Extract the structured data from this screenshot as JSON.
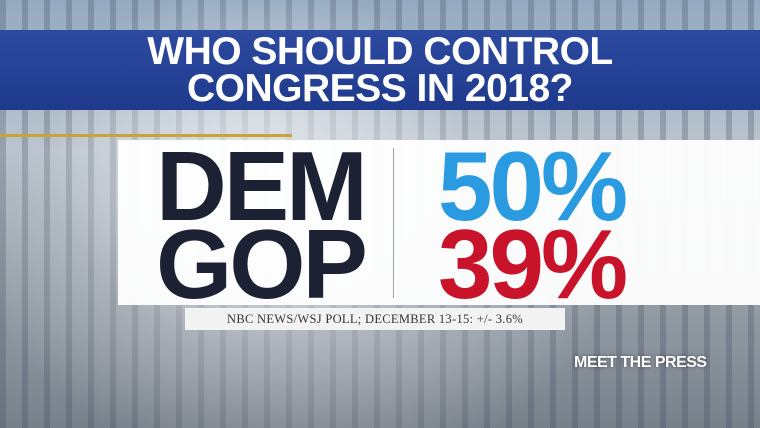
{
  "title": {
    "lines": [
      "WHO SHOULD CONTROL",
      "CONGRESS IN 2018?"
    ]
  },
  "results": [
    {
      "label": "DEM",
      "value": "50%"
    },
    {
      "label": "GOP",
      "value": "39%"
    }
  ],
  "source": "NBC NEWS/WSJ POLL; DECEMBER 13-15: +/- 3.6%",
  "logo": "MEET THE PRESS"
}
